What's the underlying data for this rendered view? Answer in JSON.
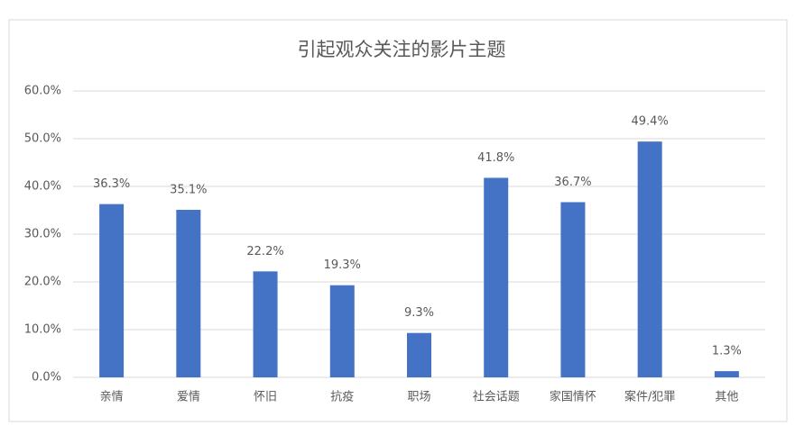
{
  "chart_data": {
    "type": "bar",
    "title": "引起观众关注的影片主题",
    "categories": [
      "亲情",
      "爱情",
      "怀旧",
      "抗疫",
      "职场",
      "社会话题",
      "家国情怀",
      "案件/犯罪",
      "其他"
    ],
    "values": [
      36.3,
      35.1,
      22.2,
      19.3,
      9.3,
      41.8,
      36.7,
      49.4,
      1.3
    ],
    "value_labels": [
      "36.3%",
      "35.1%",
      "22.2%",
      "19.3%",
      "9.3%",
      "41.8%",
      "36.7%",
      "49.4%",
      "1.3%"
    ],
    "color": "#4472c4",
    "ylim": [
      0,
      60
    ],
    "yticks": [
      {
        "value": 0,
        "label": "0.0%"
      },
      {
        "value": 10,
        "label": "10.0%"
      },
      {
        "value": 20,
        "label": "20.0%"
      },
      {
        "value": 30,
        "label": "30.0%"
      },
      {
        "value": 40,
        "label": "40.0%"
      },
      {
        "value": 50,
        "label": "50.0%"
      },
      {
        "value": 60,
        "label": "60.0%"
      }
    ],
    "grid": true
  }
}
